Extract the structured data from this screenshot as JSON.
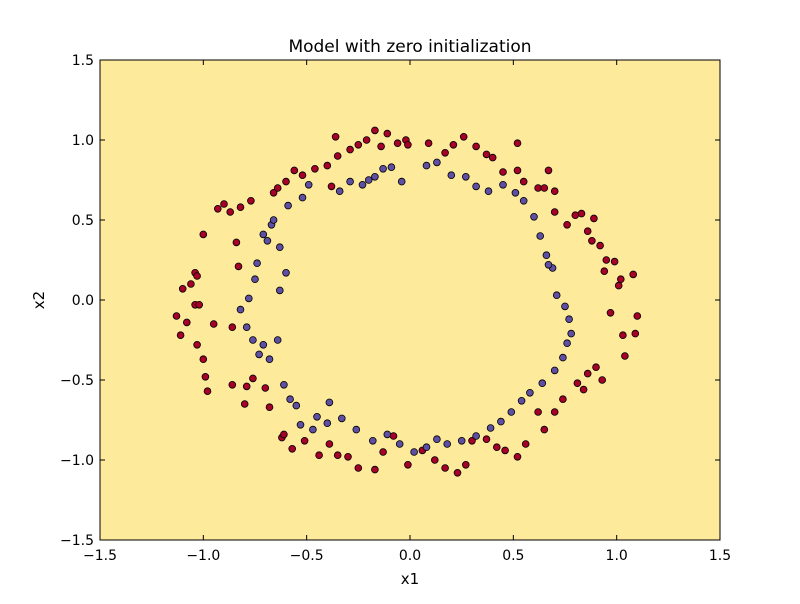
{
  "chart_data": {
    "type": "scatter",
    "title": "Model with zero initialization",
    "xlabel": "x1",
    "ylabel": "x2",
    "xlim": [
      -1.5,
      1.5
    ],
    "ylim": [
      -1.5,
      1.5
    ],
    "xticks": [
      -1.5,
      -1.0,
      -0.5,
      0.0,
      0.5,
      1.0,
      1.5
    ],
    "yticks": [
      -1.5,
      -1.0,
      -0.5,
      0.0,
      0.5,
      1.0,
      1.5
    ],
    "xtick_labels": [
      "−1.5",
      "−1.0",
      "−0.5",
      "0.0",
      "0.5",
      "1.0",
      "1.5"
    ],
    "ytick_labels": [
      "−1.5",
      "−1.0",
      "−0.5",
      "0.0",
      "0.5",
      "1.0",
      "1.5"
    ],
    "grid": false,
    "background_color": "#fdea9b",
    "series": [
      {
        "color": "#a50026",
        "points": [
          [
            -1.13,
            -0.1
          ],
          [
            -1.1,
            0.07
          ],
          [
            -1.11,
            -0.22
          ],
          [
            -1.08,
            -0.14
          ],
          [
            -1.06,
            0.1
          ],
          [
            -1.04,
            0.17
          ],
          [
            -1.03,
            0.15
          ],
          [
            -1.04,
            -0.03
          ],
          [
            -1.02,
            -0.03
          ],
          [
            -1.03,
            -0.28
          ],
          [
            -1.0,
            -0.37
          ],
          [
            -0.99,
            -0.48
          ],
          [
            -1.0,
            0.41
          ],
          [
            -0.98,
            -0.57
          ],
          [
            -0.95,
            -0.15
          ],
          [
            -0.93,
            0.57
          ],
          [
            -0.9,
            0.6
          ],
          [
            -0.87,
            0.55
          ],
          [
            -0.86,
            -0.53
          ],
          [
            -0.84,
            0.36
          ],
          [
            -0.86,
            -0.17
          ],
          [
            -0.83,
            0.21
          ],
          [
            -0.82,
            0.58
          ],
          [
            -0.79,
            -0.54
          ],
          [
            -0.8,
            -0.65
          ],
          [
            -0.77,
            0.62
          ],
          [
            -0.76,
            -0.49
          ],
          [
            -0.7,
            -0.55
          ],
          [
            -0.66,
            0.67
          ],
          [
            -0.64,
            0.7
          ],
          [
            -0.68,
            -0.67
          ],
          [
            -0.6,
            0.74
          ],
          [
            -0.56,
            0.81
          ],
          [
            -0.52,
            0.78
          ],
          [
            -0.46,
            0.82
          ],
          [
            -0.4,
            0.84
          ],
          [
            -0.38,
            0.71
          ],
          [
            -0.35,
            0.9
          ],
          [
            -0.36,
            1.02
          ],
          [
            -0.29,
            0.94
          ],
          [
            -0.25,
            0.97
          ],
          [
            -0.21,
            1.0
          ],
          [
            -0.17,
            1.06
          ],
          [
            -0.14,
            0.96
          ],
          [
            -0.11,
            1.04
          ],
          [
            -0.06,
            0.98
          ],
          [
            -0.02,
            1.0
          ],
          [
            -0.01,
            0.97
          ],
          [
            0.09,
            0.98
          ],
          [
            0.17,
            0.92
          ],
          [
            0.21,
            0.97
          ],
          [
            0.26,
            1.02
          ],
          [
            0.32,
            0.96
          ],
          [
            0.37,
            0.91
          ],
          [
            0.4,
            0.89
          ],
          [
            0.45,
            0.8
          ],
          [
            0.52,
            0.81
          ],
          [
            0.52,
            0.98
          ],
          [
            0.55,
            0.74
          ],
          [
            0.62,
            0.7
          ],
          [
            0.65,
            0.7
          ],
          [
            0.67,
            0.81
          ],
          [
            0.7,
            0.68
          ],
          [
            0.7,
            0.55
          ],
          [
            0.76,
            0.47
          ],
          [
            0.8,
            0.53
          ],
          [
            0.83,
            0.54
          ],
          [
            0.86,
            0.43
          ],
          [
            0.88,
            0.37
          ],
          [
            0.89,
            0.51
          ],
          [
            0.92,
            0.34
          ],
          [
            0.94,
            0.18
          ],
          [
            0.95,
            0.25
          ],
          [
            0.97,
            -0.08
          ],
          [
            0.99,
            0.24
          ],
          [
            1.01,
            0.09
          ],
          [
            1.02,
            0.13
          ],
          [
            1.03,
            -0.22
          ],
          [
            1.04,
            -0.35
          ],
          [
            1.08,
            0.16
          ],
          [
            1.09,
            -0.21
          ],
          [
            1.1,
            -0.1
          ],
          [
            -0.62,
            -0.86
          ],
          [
            -0.61,
            -0.84
          ],
          [
            -0.57,
            -0.93
          ],
          [
            -0.51,
            -0.88
          ],
          [
            -0.44,
            -0.97
          ],
          [
            -0.39,
            -0.9
          ],
          [
            -0.35,
            -0.97
          ],
          [
            -0.3,
            -0.98
          ],
          [
            -0.25,
            -1.05
          ],
          [
            -0.17,
            -1.06
          ],
          [
            -0.13,
            -0.95
          ],
          [
            -0.08,
            -0.85
          ],
          [
            -0.01,
            -1.03
          ],
          [
            0.06,
            -0.94
          ],
          [
            0.12,
            -1.0
          ],
          [
            0.17,
            -1.05
          ],
          [
            0.23,
            -1.08
          ],
          [
            0.27,
            -1.03
          ],
          [
            0.3,
            -0.88
          ],
          [
            0.37,
            -0.87
          ],
          [
            0.42,
            -0.92
          ],
          [
            0.46,
            -0.94
          ],
          [
            0.52,
            -0.98
          ],
          [
            0.56,
            -0.9
          ],
          [
            0.62,
            -0.7
          ],
          [
            0.65,
            -0.81
          ],
          [
            0.7,
            -0.7
          ],
          [
            0.74,
            -0.62
          ],
          [
            0.81,
            -0.52
          ],
          [
            0.84,
            -0.56
          ],
          [
            0.86,
            -0.46
          ],
          [
            0.9,
            -0.42
          ],
          [
            0.93,
            -0.5
          ]
        ]
      },
      {
        "color": "#5e4fa2",
        "points": [
          [
            -0.82,
            -0.06
          ],
          [
            -0.79,
            -0.17
          ],
          [
            -0.78,
            0.01
          ],
          [
            -0.76,
            -0.25
          ],
          [
            -0.75,
            0.13
          ],
          [
            -0.74,
            0.23
          ],
          [
            -0.73,
            -0.34
          ],
          [
            -0.71,
            0.41
          ],
          [
            -0.71,
            -0.28
          ],
          [
            -0.69,
            0.37
          ],
          [
            -0.68,
            -0.37
          ],
          [
            -0.67,
            0.47
          ],
          [
            -0.66,
            0.5
          ],
          [
            -0.64,
            -0.25
          ],
          [
            -0.63,
            0.33
          ],
          [
            -0.61,
            -0.53
          ],
          [
            -0.6,
            0.17
          ],
          [
            -0.59,
            0.59
          ],
          [
            -0.58,
            -0.62
          ],
          [
            -0.55,
            -0.66
          ],
          [
            -0.52,
            0.64
          ],
          [
            -0.49,
            0.72
          ],
          [
            -0.45,
            -0.73
          ],
          [
            -0.39,
            -0.64
          ],
          [
            -0.34,
            0.68
          ],
          [
            -0.29,
            0.74
          ],
          [
            -0.23,
            0.72
          ],
          [
            -0.2,
            0.75
          ],
          [
            -0.17,
            0.77
          ],
          [
            -0.13,
            0.82
          ],
          [
            -0.09,
            0.83
          ],
          [
            -0.04,
            0.74
          ],
          [
            0.08,
            0.84
          ],
          [
            0.13,
            0.86
          ],
          [
            0.2,
            0.78
          ],
          [
            0.27,
            0.77
          ],
          [
            0.32,
            0.71
          ],
          [
            0.38,
            0.68
          ],
          [
            0.45,
            0.72
          ],
          [
            0.51,
            0.67
          ],
          [
            0.55,
            0.62
          ],
          [
            0.6,
            0.52
          ],
          [
            0.63,
            0.4
          ],
          [
            0.66,
            0.28
          ],
          [
            0.69,
            0.2
          ],
          [
            0.71,
            0.03
          ],
          [
            0.75,
            -0.04
          ],
          [
            0.77,
            -0.12
          ],
          [
            0.78,
            -0.21
          ],
          [
            0.76,
            -0.27
          ],
          [
            0.74,
            -0.36
          ],
          [
            0.7,
            -0.44
          ],
          [
            0.64,
            -0.52
          ],
          [
            0.58,
            -0.58
          ],
          [
            0.54,
            -0.63
          ],
          [
            0.49,
            -0.7
          ],
          [
            0.44,
            -0.76
          ],
          [
            0.39,
            -0.8
          ],
          [
            0.32,
            -0.85
          ],
          [
            0.25,
            -0.88
          ],
          [
            0.18,
            -0.9
          ],
          [
            0.13,
            -0.87
          ],
          [
            0.08,
            -0.92
          ],
          [
            0.02,
            -0.95
          ],
          [
            -0.05,
            -0.9
          ],
          [
            -0.11,
            -0.84
          ],
          [
            -0.18,
            -0.88
          ],
          [
            -0.26,
            -0.81
          ],
          [
            -0.33,
            -0.74
          ],
          [
            -0.4,
            -0.77
          ],
          [
            -0.47,
            -0.81
          ],
          [
            -0.53,
            -0.78
          ],
          [
            -0.63,
            0.06
          ],
          [
            0.67,
            0.22
          ]
        ]
      }
    ]
  }
}
